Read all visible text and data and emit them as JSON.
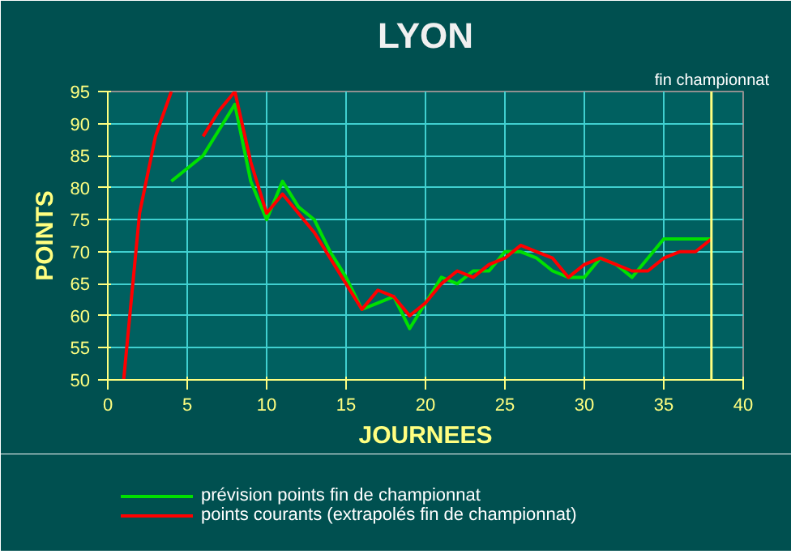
{
  "chart_data": {
    "type": "line",
    "title": "LYON",
    "xlabel": "JOURNEES",
    "ylabel": "POINTS",
    "x": [
      1,
      2,
      3,
      4,
      5,
      6,
      7,
      8,
      9,
      10,
      11,
      12,
      13,
      14,
      15,
      16,
      17,
      18,
      19,
      20,
      21,
      22,
      23,
      24,
      25,
      26,
      27,
      28,
      29,
      30,
      31,
      32,
      33,
      34,
      35,
      36,
      37,
      38
    ],
    "series": [
      {
        "name": "prévision points fin de championnat",
        "color": "#00e000",
        "values": [
          null,
          null,
          null,
          81,
          83,
          85,
          89,
          93,
          81,
          75,
          81,
          77,
          75,
          70,
          66,
          61,
          62,
          63,
          58,
          62,
          66,
          65,
          67,
          67,
          70,
          70,
          69,
          67,
          66,
          66,
          69,
          68,
          66,
          69,
          72,
          72,
          72,
          72
        ]
      },
      {
        "name": "points courants (extrapolés fin de championnat)",
        "color": "#ff0000",
        "values": [
          50,
          76,
          88,
          95,
          null,
          88,
          92,
          95,
          84,
          76,
          79,
          76,
          73,
          69,
          65,
          61,
          64,
          63,
          60,
          62,
          65,
          67,
          66,
          68,
          69,
          71,
          70,
          69,
          66,
          68,
          69,
          68,
          67,
          67,
          69,
          70,
          70,
          72
        ]
      }
    ],
    "xlim": [
      0,
      40
    ],
    "xticks": [
      0,
      5,
      10,
      15,
      20,
      25,
      30,
      35,
      40
    ],
    "ylim": [
      50,
      95
    ],
    "yticks": [
      50,
      55,
      60,
      65,
      70,
      75,
      80,
      85,
      90,
      95
    ],
    "grid": true,
    "legend": "bottom",
    "marker": "none",
    "line_style": "solid",
    "ref_lines": [
      {
        "axis": "x",
        "value": 38,
        "label": "fin championnat",
        "color": "#ffff80"
      }
    ]
  }
}
